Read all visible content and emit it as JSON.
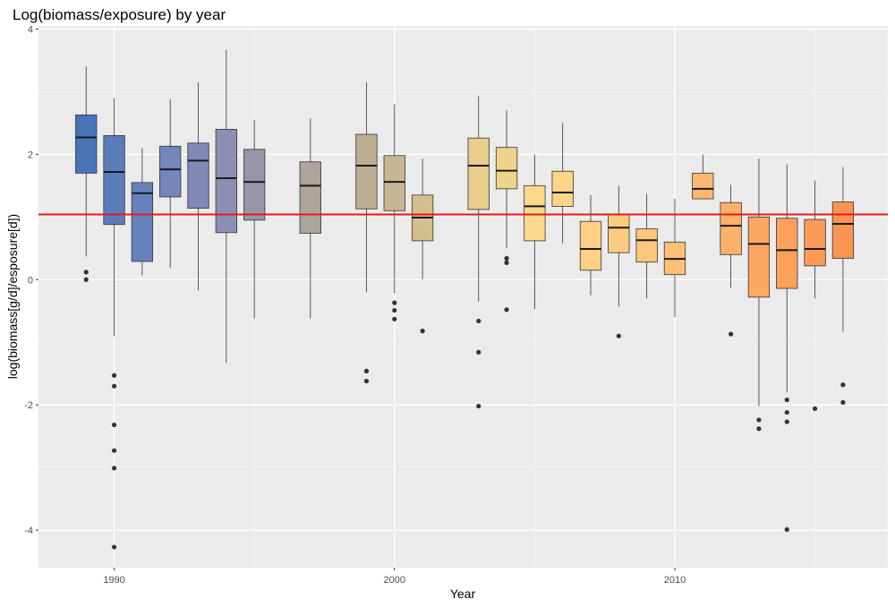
{
  "chart_data": {
    "type": "box",
    "title": "Log(biomass/exposure) by year",
    "xlabel": "Year",
    "ylabel": "log(biomass[g/d]/esposure[d])",
    "xlim": [
      1987.3,
      2017.6
    ],
    "ylim": [
      -4.6,
      4.05
    ],
    "x_ticks": [
      1990,
      2000,
      2010
    ],
    "y_ticks": [
      -4,
      -2,
      0,
      2,
      4
    ],
    "grid": true,
    "legend": "none",
    "reference_line": {
      "y": 1.04,
      "color": "#e41a1c"
    },
    "colors": {
      "panel": "#ebebeb",
      "grid_major": "#ffffff",
      "grid_minor": "#f3f3f3",
      "box_outline": "#333333",
      "median": "#1a1a1a",
      "outlier": "#333333"
    },
    "boxes": [
      {
        "year": 1989,
        "low": 0.37,
        "q1": 1.7,
        "median": 2.27,
        "q3": 2.63,
        "high": 3.4,
        "outliers": [
          0.12,
          0.0
        ],
        "color": "#4a74b8"
      },
      {
        "year": 1990,
        "low": -0.9,
        "q1": 0.88,
        "median": 1.72,
        "q3": 2.3,
        "high": 2.9,
        "outliers": [
          -1.53,
          -1.7,
          -2.32,
          -2.73,
          -3.01,
          -4.27
        ],
        "color": "#5a7cbc"
      },
      {
        "year": 1991,
        "low": 0.07,
        "q1": 0.29,
        "median": 1.38,
        "q3": 1.55,
        "high": 2.1,
        "outliers": [],
        "color": "#6681be"
      },
      {
        "year": 1992,
        "low": 0.19,
        "q1": 1.32,
        "median": 1.76,
        "q3": 2.13,
        "high": 2.88,
        "outliers": [],
        "color": "#7487bc"
      },
      {
        "year": 1993,
        "low": -0.17,
        "q1": 1.14,
        "median": 1.9,
        "q3": 2.18,
        "high": 3.15,
        "outliers": [],
        "color": "#8089b8"
      },
      {
        "year": 1994,
        "low": -1.33,
        "q1": 0.75,
        "median": 1.62,
        "q3": 2.4,
        "high": 3.67,
        "outliers": [],
        "color": "#8b90b2"
      },
      {
        "year": 1995,
        "low": -0.62,
        "q1": 0.95,
        "median": 1.56,
        "q3": 2.08,
        "high": 2.55,
        "outliers": [],
        "color": "#9696ab"
      },
      {
        "year": 1997,
        "low": -0.62,
        "q1": 0.74,
        "median": 1.5,
        "q3": 1.88,
        "high": 2.57,
        "outliers": [],
        "color": "#aca69a"
      },
      {
        "year": 1999,
        "low": -0.2,
        "q1": 1.13,
        "median": 1.82,
        "q3": 2.32,
        "high": 3.15,
        "outliers": [
          -1.46,
          -1.62
        ],
        "color": "#bdae93"
      },
      {
        "year": 2000,
        "low": -0.22,
        "q1": 1.1,
        "median": 1.56,
        "q3": 1.98,
        "high": 2.8,
        "outliers": [
          -0.37,
          -0.49,
          -0.63
        ],
        "color": "#c8b692"
      },
      {
        "year": 2001,
        "low": 0.0,
        "q1": 0.62,
        "median": 0.99,
        "q3": 1.35,
        "high": 1.93,
        "outliers": [
          -0.82
        ],
        "color": "#d4be8e"
      },
      {
        "year": 2003,
        "low": -0.35,
        "q1": 1.12,
        "median": 1.82,
        "q3": 2.26,
        "high": 2.93,
        "outliers": [
          -0.66,
          -1.16,
          -2.02
        ],
        "color": "#e8cd8d"
      },
      {
        "year": 2004,
        "low": 0.5,
        "q1": 1.45,
        "median": 1.74,
        "q3": 2.11,
        "high": 2.7,
        "outliers": [
          0.34,
          0.27,
          -0.48
        ],
        "color": "#f0d38b"
      },
      {
        "year": 2005,
        "low": -0.47,
        "q1": 0.62,
        "median": 1.17,
        "q3": 1.5,
        "high": 2.0,
        "outliers": [],
        "color": "#fbd98a"
      },
      {
        "year": 2006,
        "low": 0.58,
        "q1": 1.17,
        "median": 1.39,
        "q3": 1.73,
        "high": 2.5,
        "outliers": [],
        "color": "#fdd586"
      },
      {
        "year": 2007,
        "low": -0.25,
        "q1": 0.15,
        "median": 0.49,
        "q3": 0.93,
        "high": 1.35,
        "outliers": [],
        "color": "#fed083"
      },
      {
        "year": 2008,
        "low": -0.43,
        "q1": 0.43,
        "median": 0.83,
        "q3": 1.04,
        "high": 1.5,
        "outliers": [
          -0.9
        ],
        "color": "#fecc80"
      },
      {
        "year": 2009,
        "low": -0.3,
        "q1": 0.28,
        "median": 0.63,
        "q3": 0.81,
        "high": 1.37,
        "outliers": [],
        "color": "#fdc67c"
      },
      {
        "year": 2010,
        "low": -0.6,
        "q1": 0.08,
        "median": 0.33,
        "q3": 0.6,
        "high": 1.29,
        "outliers": [],
        "color": "#fdc076"
      },
      {
        "year": 2011,
        "low": 1.29,
        "q1": 1.29,
        "median": 1.45,
        "q3": 1.7,
        "high": 2.0,
        "outliers": [],
        "color": "#fcb86e"
      },
      {
        "year": 2012,
        "low": -0.13,
        "q1": 0.4,
        "median": 0.86,
        "q3": 1.23,
        "high": 1.51,
        "outliers": [
          -0.87
        ],
        "color": "#fcb068"
      },
      {
        "year": 2013,
        "low": -2.02,
        "q1": -0.28,
        "median": 0.57,
        "q3": 1.0,
        "high": 1.93,
        "outliers": [
          -2.24,
          -2.38
        ],
        "color": "#fca862"
      },
      {
        "year": 2014,
        "low": -1.8,
        "q1": -0.14,
        "median": 0.47,
        "q3": 0.98,
        "high": 1.84,
        "outliers": [
          -1.92,
          -2.12,
          -2.27,
          -3.99
        ],
        "color": "#fca15c"
      },
      {
        "year": 2015,
        "low": -0.3,
        "q1": 0.22,
        "median": 0.49,
        "q3": 0.96,
        "high": 1.58,
        "outliers": [
          -2.06
        ],
        "color": "#fb9a57"
      },
      {
        "year": 2016,
        "low": -0.83,
        "q1": 0.34,
        "median": 0.89,
        "q3": 1.24,
        "high": 1.8,
        "outliers": [
          -1.68,
          -1.96
        ],
        "color": "#fb9352"
      }
    ]
  }
}
